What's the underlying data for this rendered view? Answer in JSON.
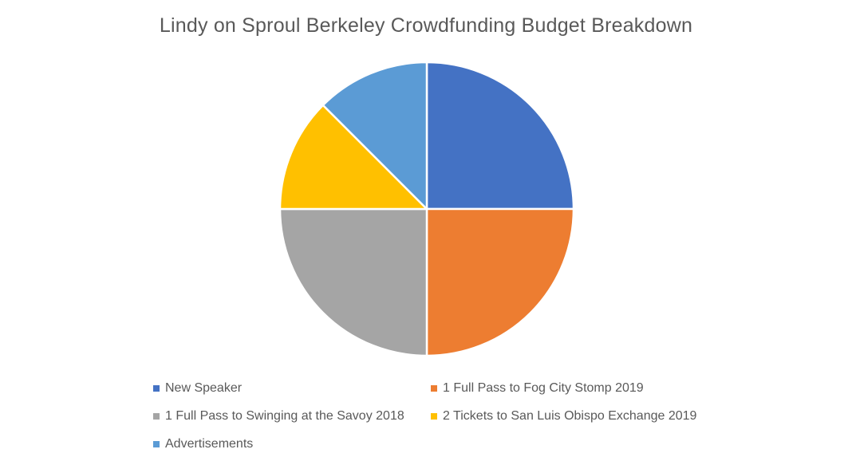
{
  "chart_data": {
    "type": "pie",
    "title": "Lindy on Sproul Berkeley Crowdfunding Budget Breakdown",
    "slices": [
      {
        "label": "New Speaker",
        "value": 25,
        "color": "#4472C4"
      },
      {
        "label": "1 Full Pass to Fog City Stomp 2019",
        "value": 25,
        "color": "#ED7D31"
      },
      {
        "label": "1 Full Pass to Swinging at the Savoy 2018",
        "value": 25,
        "color": "#A5A5A5"
      },
      {
        "label": "2 Tickets to San Luis Obispo Exchange 2019",
        "value": 12.5,
        "color": "#FFC000"
      },
      {
        "label": "Advertisements",
        "value": 12.5,
        "color": "#5B9BD5"
      }
    ],
    "legend_position": "bottom"
  }
}
